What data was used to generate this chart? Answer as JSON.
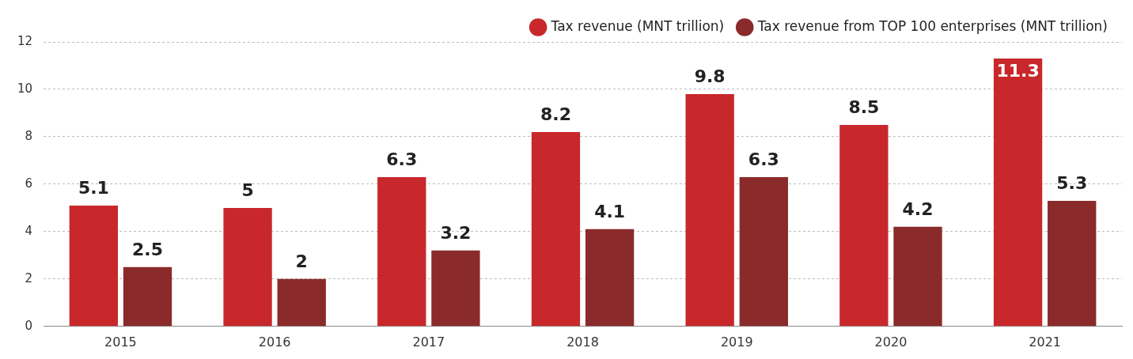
{
  "chart_data": {
    "type": "bar",
    "categories": [
      "2015",
      "2016",
      "2017",
      "2018",
      "2019",
      "2020",
      "2021"
    ],
    "series": [
      {
        "name": "Tax revenue (MNT trillion)",
        "color": "#c8282b",
        "values": [
          5.1,
          5,
          6.3,
          8.2,
          9.8,
          8.5,
          11.3
        ]
      },
      {
        "name": "Tax revenue from TOP 100 enterprises (MNT trillion)",
        "color": "#8b2a2a",
        "values": [
          2.5,
          2,
          3.2,
          4.1,
          6.3,
          4.2,
          5.3
        ]
      }
    ],
    "ylim": [
      0,
      12
    ],
    "yticks": [
      0,
      2,
      4,
      6,
      8,
      10,
      12
    ],
    "grid": "y",
    "legend": "top right",
    "data_labels": true
  }
}
